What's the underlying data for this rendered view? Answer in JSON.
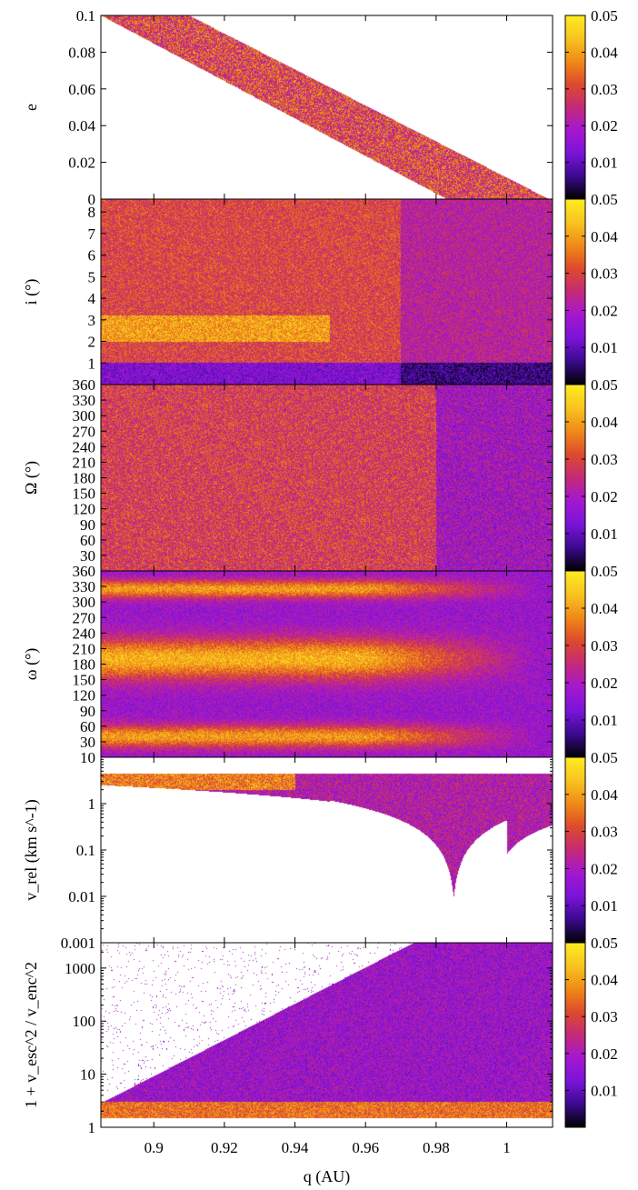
{
  "chart_data": {
    "type": "heatmap",
    "colorbar": {
      "min": 0,
      "max": 0.05,
      "ticks": [
        0.01,
        0.02,
        0.03,
        0.04,
        0.05
      ],
      "tick_labels": [
        "0.01",
        "0.02",
        "0.03",
        "0.04",
        "0.05"
      ],
      "stops": [
        "#000000",
        "#3a0a8e",
        "#7a14d8",
        "#a417d0",
        "#c42a78",
        "#dd4a2c",
        "#f08a18",
        "#f7c420",
        "#ffec20"
      ]
    },
    "x_axis": {
      "label": "q (AU)",
      "range": [
        0.885,
        1.013
      ],
      "ticks": [
        0.9,
        0.92,
        0.94,
        0.96,
        0.98,
        1
      ],
      "tick_labels": [
        "0.9",
        "0.92",
        "0.94",
        "0.96",
        "0.98",
        "1"
      ]
    },
    "panels": [
      {
        "id": "e",
        "ylabel": "e",
        "scale": "linear",
        "ylim": [
          0,
          0.1
        ],
        "ticks": [
          0,
          0.02,
          0.04,
          0.06,
          0.08,
          0.1
        ],
        "tick_labels": [
          "0",
          "0.02",
          "0.04",
          "0.06",
          "0.08",
          "0.1"
        ],
        "distribution": "diagonal band from e=0.1 at q≈0.89–0.91 down to e=0 at q≈0.983–1.012"
      },
      {
        "id": "i",
        "ylabel": "i (°)",
        "scale": "linear",
        "ylim": [
          0,
          8.6
        ],
        "ticks": [
          1,
          2,
          3,
          4,
          5,
          6,
          7,
          8
        ],
        "tick_labels": [
          "1",
          "2",
          "3",
          "4",
          "5",
          "6",
          "7",
          "8"
        ],
        "distribution": "filled; higher density near i≈2–3 at low q, dark band near i<1"
      },
      {
        "id": "Omega",
        "ylabel": "Ω (°)",
        "scale": "linear",
        "ylim": [
          0,
          360
        ],
        "ticks": [
          30,
          60,
          90,
          120,
          150,
          180,
          210,
          240,
          270,
          300,
          330,
          360
        ],
        "tick_labels": [
          "30",
          "60",
          "90",
          "120",
          "150",
          "180",
          "210",
          "240",
          "270",
          "300",
          "330",
          "360"
        ],
        "distribution": "filled; arc structures near q≈0.98–1.01"
      },
      {
        "id": "omega",
        "ylabel": "ω (°)",
        "scale": "linear",
        "ylim": [
          0,
          360
        ],
        "ticks": [
          30,
          60,
          90,
          120,
          150,
          180,
          210,
          240,
          270,
          300,
          330,
          360
        ],
        "tick_labels": [
          "30",
          "60",
          "90",
          "120",
          "150",
          "180",
          "210",
          "240",
          "270",
          "300",
          "330",
          "360"
        ],
        "distribution": "horizontal high-density bands near 20–60, 150–230, 300–340"
      },
      {
        "id": "vrel",
        "ylabel": "v_rel (km s^-1)",
        "scale": "log",
        "ylim": [
          0.001,
          10
        ],
        "ticks": [
          0.001,
          0.01,
          0.1,
          1,
          10
        ],
        "tick_labels": [
          "0.001",
          "0.01",
          "0.1",
          "1",
          "10"
        ],
        "distribution": "upper band from ~4.5 down to a lower envelope that drops to ~0.01 near q≈0.975–0.99"
      },
      {
        "id": "vesc",
        "ylabel": "1 + v_esc^2 / v_enc^2",
        "scale": "log",
        "ylim": [
          1,
          3000
        ],
        "ticks": [
          1,
          10,
          100,
          1000
        ],
        "tick_labels": [
          "1",
          "10",
          "100",
          "1000"
        ],
        "distribution": "wedge rising from ~3 at q≈0.89 up to >1000 at q≈0.97–1.01"
      }
    ]
  }
}
